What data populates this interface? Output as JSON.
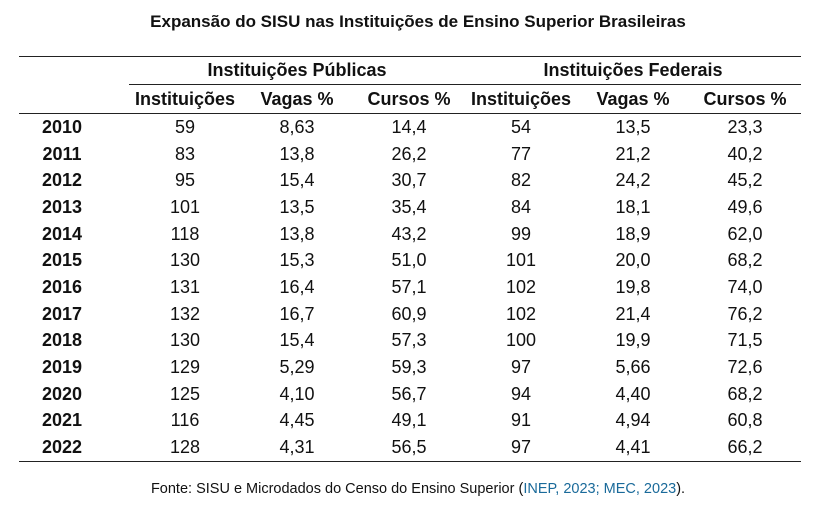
{
  "caption": "Expansão do SISU nas Instituições de Ensino Superior Brasileiras",
  "groups": [
    "Instituições Públicas",
    "Instituições Federais"
  ],
  "columns": [
    "Instituições",
    "Vagas %",
    "Cursos %",
    "Instituições",
    "Vagas %",
    "Cursos %"
  ],
  "rows": [
    {
      "year": "2010",
      "values": [
        "59",
        "8,63",
        "14,4",
        "54",
        "13,5",
        "23,3"
      ]
    },
    {
      "year": "2011",
      "values": [
        "83",
        "13,8",
        "26,2",
        "77",
        "21,2",
        "40,2"
      ]
    },
    {
      "year": "2012",
      "values": [
        "95",
        "15,4",
        "30,7",
        "82",
        "24,2",
        "45,2"
      ]
    },
    {
      "year": "2013",
      "values": [
        "101",
        "13,5",
        "35,4",
        "84",
        "18,1",
        "49,6"
      ]
    },
    {
      "year": "2014",
      "values": [
        "118",
        "13,8",
        "43,2",
        "99",
        "18,9",
        "62,0"
      ]
    },
    {
      "year": "2015",
      "values": [
        "130",
        "15,3",
        "51,0",
        "101",
        "20,0",
        "68,2"
      ]
    },
    {
      "year": "2016",
      "values": [
        "131",
        "16,4",
        "57,1",
        "102",
        "19,8",
        "74,0"
      ]
    },
    {
      "year": "2017",
      "values": [
        "132",
        "16,7",
        "60,9",
        "102",
        "21,4",
        "76,2"
      ]
    },
    {
      "year": "2018",
      "values": [
        "130",
        "15,4",
        "57,3",
        "100",
        "19,9",
        "71,5"
      ]
    },
    {
      "year": "2019",
      "values": [
        "129",
        "5,29",
        "59,3",
        "97",
        "5,66",
        "72,6"
      ]
    },
    {
      "year": "2020",
      "values": [
        "125",
        "4,10",
        "56,7",
        "94",
        "4,40",
        "68,2"
      ]
    },
    {
      "year": "2021",
      "values": [
        "116",
        "4,45",
        "49,1",
        "91",
        "4,94",
        "60,8"
      ]
    },
    {
      "year": "2022",
      "values": [
        "128",
        "4,31",
        "56,5",
        "97",
        "4,41",
        "66,2"
      ]
    }
  ],
  "source": {
    "prefix": "Fonte: SISU e Microdados do Censo do Ensino Superior (",
    "citation": "INEP, 2023; MEC, 2023",
    "suffix": ")."
  },
  "colors": {
    "text": "#111111",
    "citation_link": "#1a6a9a",
    "rule": "#222222"
  }
}
